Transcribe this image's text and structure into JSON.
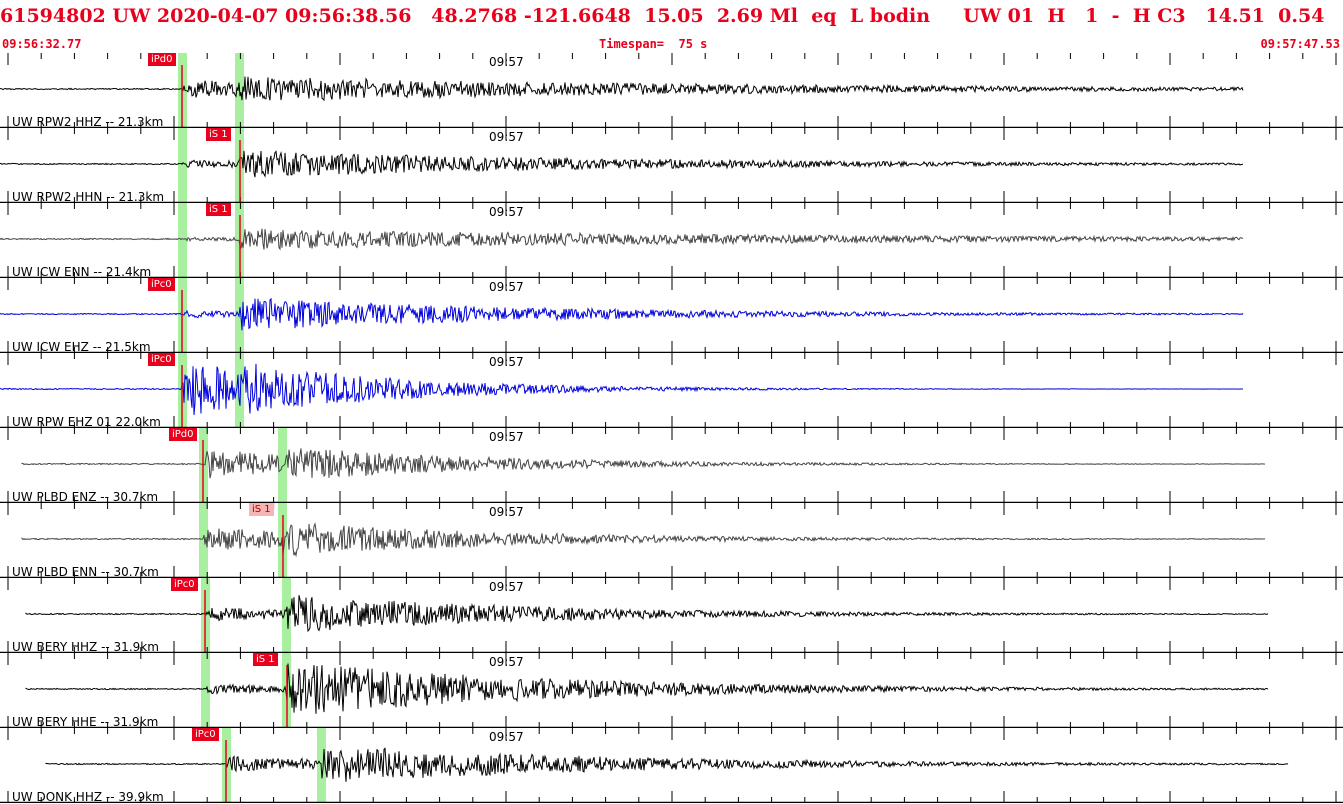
{
  "header": {
    "title": "61594802 UW 2020-04-07 09:56:38.56   48.2768 -121.6648  15.05  2.69 Ml  eq  L bodin     UW 01  H   1  -  H C3   14.51  0.54",
    "start_time": "09:56:32.77",
    "timespan": "Timespan=  75 s",
    "end_time": "09:57:47.53"
  },
  "colors": {
    "header_text": "#e8001c",
    "trace_black": "#000000",
    "trace_gray": "#444444",
    "trace_blue": "#0000dd",
    "window_green": "#a8f0a0",
    "pick_red": "#e8001c"
  },
  "panels": [
    {
      "station": "UW RPW2 HHZ -- 21.3km",
      "time_label": "09:57",
      "trace_color": "black",
      "picks": [
        {
          "label": "iPd0"
        }
      ]
    },
    {
      "station": "UW RPW2 HHN -- 21.3km",
      "time_label": "09:57",
      "trace_color": "black",
      "picks": [
        {
          "label": "iS 1"
        }
      ]
    },
    {
      "station": "UW ICW ENN -- 21.4km",
      "time_label": "09:57",
      "trace_color": "gray",
      "picks": [
        {
          "label": "iS 1"
        }
      ]
    },
    {
      "station": "UW ICW EHZ -- 21.5km",
      "time_label": "09:57",
      "trace_color": "blue",
      "picks": [
        {
          "label": "iPc0"
        }
      ]
    },
    {
      "station": "UW RPW EHZ 01 22.0km",
      "time_label": "09:57",
      "trace_color": "blue",
      "picks": [
        {
          "label": "iPc0"
        }
      ]
    },
    {
      "station": "UW PLBD ENZ -- 30.7km",
      "time_label": "09:57",
      "trace_color": "gray",
      "picks": [
        {
          "label": "iPd0"
        }
      ]
    },
    {
      "station": "UW PLBD ENN -- 30.7km",
      "time_label": "09:57",
      "trace_color": "gray",
      "picks": [
        {
          "label": "iS 1",
          "light": true
        }
      ]
    },
    {
      "station": "UW BERY HHZ -- 31.9km",
      "time_label": "09:57",
      "trace_color": "black",
      "picks": [
        {
          "label": "iPc0"
        }
      ]
    },
    {
      "station": "UW BERY HHE -- 31.9km",
      "time_label": "09:57",
      "trace_color": "black",
      "picks": [
        {
          "label": "iS 1"
        }
      ]
    },
    {
      "station": "UW DONK HHZ -- 39.9km",
      "time_label": "09:57",
      "trace_color": "black",
      "picks": [
        {
          "label": "iPc0"
        }
      ]
    }
  ]
}
